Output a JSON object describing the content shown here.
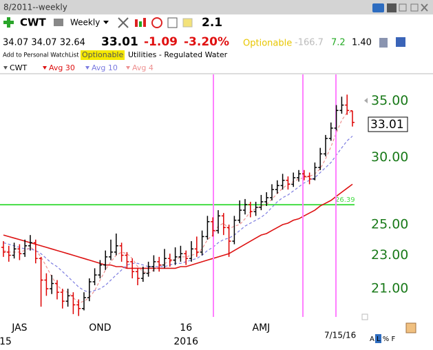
{
  "window": {
    "title": "8/2011--weekly"
  },
  "toolbar": {
    "symbol": "CWT",
    "period": "Weekly",
    "rank": "2.1"
  },
  "quote": {
    "ohl": "34.07 34.07 32.64",
    "last": "33.01",
    "change": "-1.09",
    "change_pct": "-3.20%",
    "optionable": "Optionable",
    "stat1": "-166.7",
    "stat2": "7.2",
    "stat3": "1.40"
  },
  "info": {
    "watchlist": "Add to Personal WatchList",
    "optionable": "Optionable",
    "industry": "Utilities - Regulated Water"
  },
  "footer": {
    "date": "7/15/16",
    "modes": "A L % F"
  },
  "chart_data": {
    "type": "ohlc",
    "name": "CWT",
    "log_scale": true,
    "grid": false,
    "up_color": "#000000",
    "down_color": "#dd0000",
    "ylim": [
      19.45,
      38.9
    ],
    "yticks": [
      {
        "value": 35,
        "label": "35.00"
      },
      {
        "value": 30,
        "label": "30.00"
      },
      {
        "value": 25,
        "label": "25.00"
      },
      {
        "value": 23,
        "label": "23.00"
      },
      {
        "value": 21,
        "label": "21.00"
      }
    ],
    "categories": [
      null,
      null,
      null,
      "JAS",
      null,
      null,
      null,
      null,
      null,
      null,
      null,
      null,
      null,
      null,
      null,
      null,
      null,
      null,
      "OND",
      null,
      null,
      null,
      null,
      null,
      null,
      null,
      null,
      null,
      null,
      null,
      null,
      null,
      null,
      null,
      "16",
      null,
      null,
      null,
      null,
      null,
      null,
      null,
      null,
      null,
      null,
      null,
      null,
      null,
      "AMJ",
      null,
      null,
      null,
      null,
      null,
      null,
      null,
      null,
      null,
      null,
      null,
      null,
      null,
      null,
      null,
      null,
      null
    ],
    "categories_row2": [
      "15",
      null,
      null,
      null,
      null,
      null,
      null,
      null,
      null,
      null,
      null,
      null,
      null,
      null,
      null,
      null,
      null,
      null,
      null,
      null,
      null,
      null,
      null,
      null,
      null,
      null,
      null,
      null,
      null,
      null,
      null,
      null,
      null,
      null,
      "2016",
      null,
      null,
      null,
      null,
      null,
      null,
      null,
      null,
      null,
      null,
      null,
      null,
      null,
      null,
      null,
      null,
      null,
      null,
      null,
      null,
      null,
      null,
      null,
      null,
      null,
      null,
      null,
      null,
      null,
      null,
      null
    ],
    "open": [
      23.5,
      23.2,
      23.0,
      23.4,
      23.1,
      23.6,
      23.8,
      22.8,
      21.5,
      21.0,
      21.3,
      20.8,
      20.3,
      20.6,
      20.1,
      19.9,
      20.5,
      21.4,
      21.8,
      22.4,
      22.9,
      23.2,
      23.6,
      23.0,
      22.6,
      22.0,
      21.6,
      21.9,
      22.3,
      22.6,
      22.4,
      22.8,
      22.7,
      22.9,
      23.1,
      22.8,
      23.4,
      23.2,
      24.2,
      25.2,
      24.6,
      25.6,
      24.8,
      23.9,
      25.3,
      26.0,
      26.4,
      25.9,
      26.2,
      26.6,
      26.9,
      27.5,
      27.8,
      28.2,
      27.9,
      28.4,
      28.7,
      28.5,
      28.3,
      29.2,
      30.3,
      31.6,
      32.5,
      34.1,
      34.6,
      34.07
    ],
    "high": [
      23.9,
      23.6,
      23.8,
      23.7,
      24.0,
      24.3,
      24.0,
      22.9,
      21.9,
      21.8,
      21.5,
      21.0,
      21.0,
      20.8,
      20.4,
      20.8,
      21.6,
      22.2,
      22.7,
      23.3,
      24.0,
      24.4,
      23.8,
      23.2,
      22.8,
      22.2,
      22.3,
      22.6,
      23.0,
      22.9,
      23.4,
      23.1,
      23.5,
      23.6,
      23.3,
      23.9,
      24.2,
      24.6,
      25.6,
      25.5,
      26.0,
      25.8,
      25.0,
      25.6,
      26.7,
      26.8,
      26.6,
      26.6,
      27.1,
      27.3,
      27.9,
      28.2,
      28.7,
      28.5,
      28.8,
      29.0,
      29.0,
      28.8,
      29.6,
      30.8,
      31.9,
      33.0,
      34.6,
      35.4,
      35.6,
      34.07
    ],
    "low": [
      22.9,
      22.6,
      22.8,
      22.7,
      22.9,
      23.3,
      22.5,
      20.0,
      20.6,
      20.7,
      20.4,
      19.9,
      20.0,
      19.6,
      19.5,
      19.8,
      20.3,
      21.2,
      21.6,
      22.1,
      22.7,
      23.0,
      22.6,
      22.2,
      21.6,
      21.2,
      21.4,
      21.7,
      22.0,
      22.0,
      22.2,
      22.3,
      22.4,
      22.6,
      22.4,
      22.6,
      22.9,
      23.0,
      24.0,
      24.2,
      24.4,
      24.3,
      22.9,
      23.7,
      25.1,
      25.7,
      25.5,
      25.6,
      26.0,
      26.3,
      26.7,
      27.2,
      27.5,
      27.5,
      27.7,
      28.1,
      28.2,
      27.9,
      28.2,
      29.0,
      30.1,
      31.4,
      32.3,
      33.8,
      33.7,
      32.64
    ],
    "close": [
      23.2,
      23.0,
      23.4,
      23.1,
      23.6,
      23.8,
      22.8,
      21.5,
      21.0,
      21.3,
      20.8,
      20.3,
      20.6,
      20.1,
      19.9,
      20.5,
      21.4,
      21.8,
      22.4,
      22.9,
      23.2,
      23.6,
      23.0,
      22.6,
      22.0,
      21.6,
      21.9,
      22.3,
      22.6,
      22.4,
      22.8,
      22.7,
      22.9,
      23.1,
      22.8,
      23.4,
      23.2,
      24.2,
      25.2,
      24.6,
      25.6,
      24.8,
      23.9,
      25.3,
      26.0,
      26.4,
      25.9,
      26.2,
      26.6,
      26.9,
      27.5,
      27.8,
      28.2,
      27.9,
      28.4,
      28.7,
      28.5,
      28.3,
      29.2,
      30.3,
      31.6,
      32.5,
      34.1,
      34.6,
      34.1,
      33.01
    ],
    "series": [
      {
        "name": "Avg 30",
        "color": "#dd1111",
        "dash": false,
        "values": [
          24.3,
          24.2,
          24.1,
          24.0,
          23.9,
          23.8,
          23.7,
          23.6,
          23.5,
          23.4,
          23.3,
          23.2,
          23.1,
          23.0,
          22.9,
          22.8,
          22.7,
          22.6,
          22.5,
          22.4,
          22.4,
          22.3,
          22.3,
          22.2,
          22.2,
          22.2,
          22.2,
          22.2,
          22.2,
          22.2,
          22.2,
          22.2,
          22.2,
          22.3,
          22.3,
          22.4,
          22.5,
          22.6,
          22.7,
          22.8,
          22.9,
          23.0,
          23.1,
          23.3,
          23.5,
          23.7,
          23.9,
          24.1,
          24.3,
          24.4,
          24.6,
          24.8,
          25.0,
          25.1,
          25.3,
          25.4,
          25.6,
          25.8,
          26.0,
          26.3,
          26.5,
          26.7,
          27.0,
          27.3,
          27.6,
          27.9
        ]
      },
      {
        "name": "Avg 10",
        "color": "#7b7be0",
        "dash": true,
        "values": [
          23.8,
          23.7,
          23.6,
          23.5,
          23.4,
          23.4,
          23.3,
          23.1,
          22.8,
          22.5,
          22.3,
          22.0,
          21.7,
          21.4,
          21.1,
          20.9,
          20.8,
          20.9,
          21.0,
          21.2,
          21.5,
          21.8,
          22.1,
          22.4,
          22.5,
          22.5,
          22.4,
          22.3,
          22.3,
          22.3,
          22.3,
          22.4,
          22.5,
          22.5,
          22.6,
          22.7,
          22.8,
          23.0,
          23.3,
          23.5,
          23.8,
          24.0,
          24.1,
          24.3,
          24.6,
          24.9,
          25.1,
          25.3,
          25.5,
          25.8,
          26.2,
          26.6,
          26.9,
          27.1,
          27.4,
          27.7,
          28.0,
          28.2,
          28.4,
          28.8,
          29.2,
          29.6,
          30.2,
          30.8,
          31.4,
          31.8
        ]
      },
      {
        "name": "Avg 4",
        "color": "#ee9090",
        "dash": true,
        "values": [
          23.3,
          23.2,
          23.2,
          23.2,
          23.3,
          23.5,
          23.3,
          22.9,
          22.3,
          21.7,
          21.2,
          20.9,
          20.8,
          20.5,
          20.2,
          20.3,
          20.5,
          20.9,
          21.5,
          22.1,
          22.6,
          23.0,
          23.2,
          23.1,
          22.8,
          22.3,
          22.0,
          21.9,
          22.1,
          22.3,
          22.5,
          22.6,
          22.7,
          22.9,
          22.9,
          23.0,
          23.1,
          23.4,
          24.0,
          24.3,
          24.9,
          25.1,
          24.7,
          24.9,
          25.0,
          25.4,
          25.9,
          26.1,
          26.3,
          26.4,
          26.8,
          27.2,
          27.6,
          27.9,
          28.1,
          28.3,
          28.4,
          28.5,
          28.7,
          29.1,
          29.9,
          30.9,
          32.1,
          33.2,
          33.9,
          34.0
        ]
      }
    ],
    "hline": {
      "value": 26.39,
      "color": "#44dd44"
    }
  }
}
